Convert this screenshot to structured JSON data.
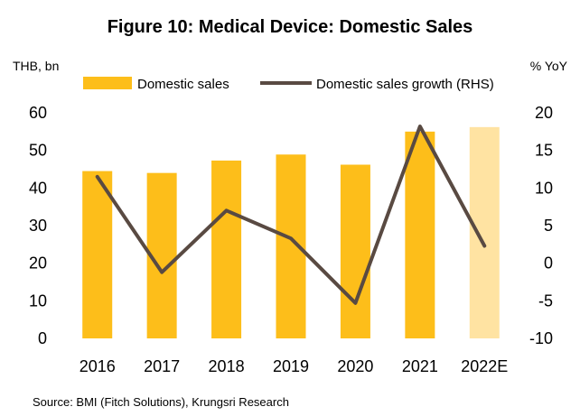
{
  "chart_data": {
    "type": "bar",
    "title": "Figure 10:  Medical Device: Domestic Sales",
    "left_unit": "THB, bn",
    "right_unit": "% YoY",
    "categories": [
      "2016",
      "2017",
      "2018",
      "2019",
      "2020",
      "2021",
      "2022E"
    ],
    "series": [
      {
        "name": "Domestic sales",
        "type": "bar",
        "axis": "left",
        "values": [
          44.5,
          44.0,
          47.3,
          48.9,
          46.2,
          55.0,
          56.2
        ]
      },
      {
        "name": "Domestic sales growth (RHS)",
        "type": "line",
        "axis": "right",
        "values": [
          11.5,
          -1.2,
          7.0,
          3.3,
          -5.3,
          18.2,
          2.3
        ]
      }
    ],
    "left_axis": {
      "ylim": [
        0,
        60
      ],
      "ticks": [
        "0",
        "10",
        "20",
        "30",
        "40",
        "50",
        "60"
      ]
    },
    "right_axis": {
      "ylim": [
        -10,
        20
      ],
      "ticks": [
        "-10",
        "-5",
        "0",
        "5",
        "10",
        "15",
        "20"
      ]
    },
    "highlight_last_bar": true,
    "grid": false,
    "legend_position": "top",
    "source": "Source: BMI (Fitch Solutions), Krungsri Research"
  },
  "colors": {
    "bar": "#FDBE1A",
    "bar_forecast": "#FFE3A2",
    "line": "#594A42"
  }
}
